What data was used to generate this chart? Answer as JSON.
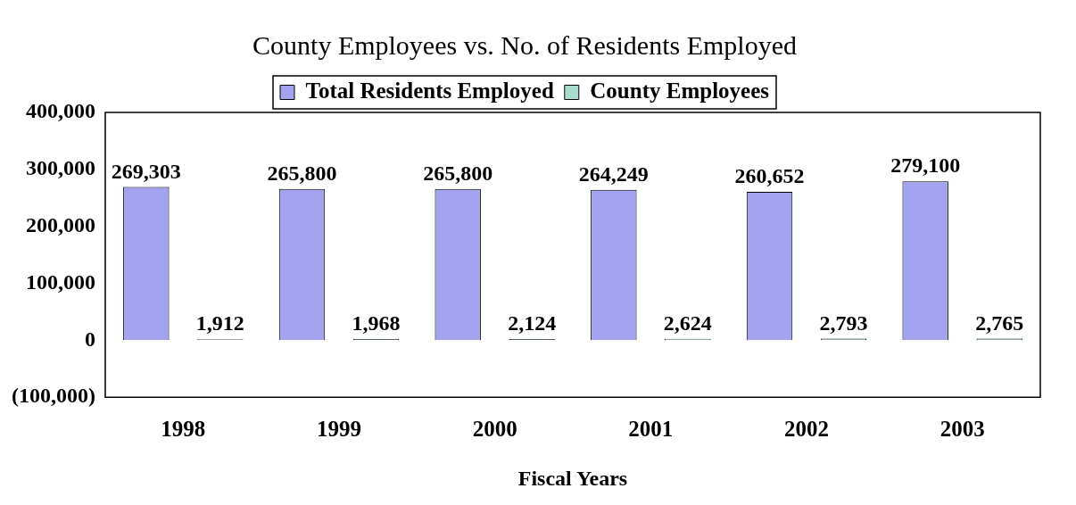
{
  "chart_data": {
    "type": "bar",
    "title": "County Employees vs. No. of Residents Employed",
    "xlabel": "Fiscal Years",
    "categories": [
      "1998",
      "1999",
      "2000",
      "2001",
      "2002",
      "2003"
    ],
    "series": [
      {
        "name": "Total Residents Employed",
        "color": "#a3a3f0",
        "values": [
          269303,
          265800,
          265800,
          264249,
          260652,
          279100
        ],
        "value_labels": [
          "269,303",
          "265,800",
          "265,800",
          "264,249",
          "260,652",
          "279,100"
        ]
      },
      {
        "name": "County Employees",
        "color": "#a8dccf",
        "values": [
          1912,
          1968,
          2124,
          2624,
          2793,
          2765
        ],
        "value_labels": [
          "1,912",
          "1,968",
          "2,124",
          "2,624",
          "2,793",
          "2,765"
        ]
      }
    ],
    "ylim": [
      -100000,
      400000
    ],
    "yticks": [
      {
        "value": -100000,
        "label": "(100,000)"
      },
      {
        "value": 0,
        "label": "0"
      },
      {
        "value": 100000,
        "label": "100,000"
      },
      {
        "value": 200000,
        "label": "200,000"
      },
      {
        "value": 300000,
        "label": "300,000"
      },
      {
        "value": 400000,
        "label": "400,000"
      }
    ],
    "legend": "top",
    "grid": false
  }
}
